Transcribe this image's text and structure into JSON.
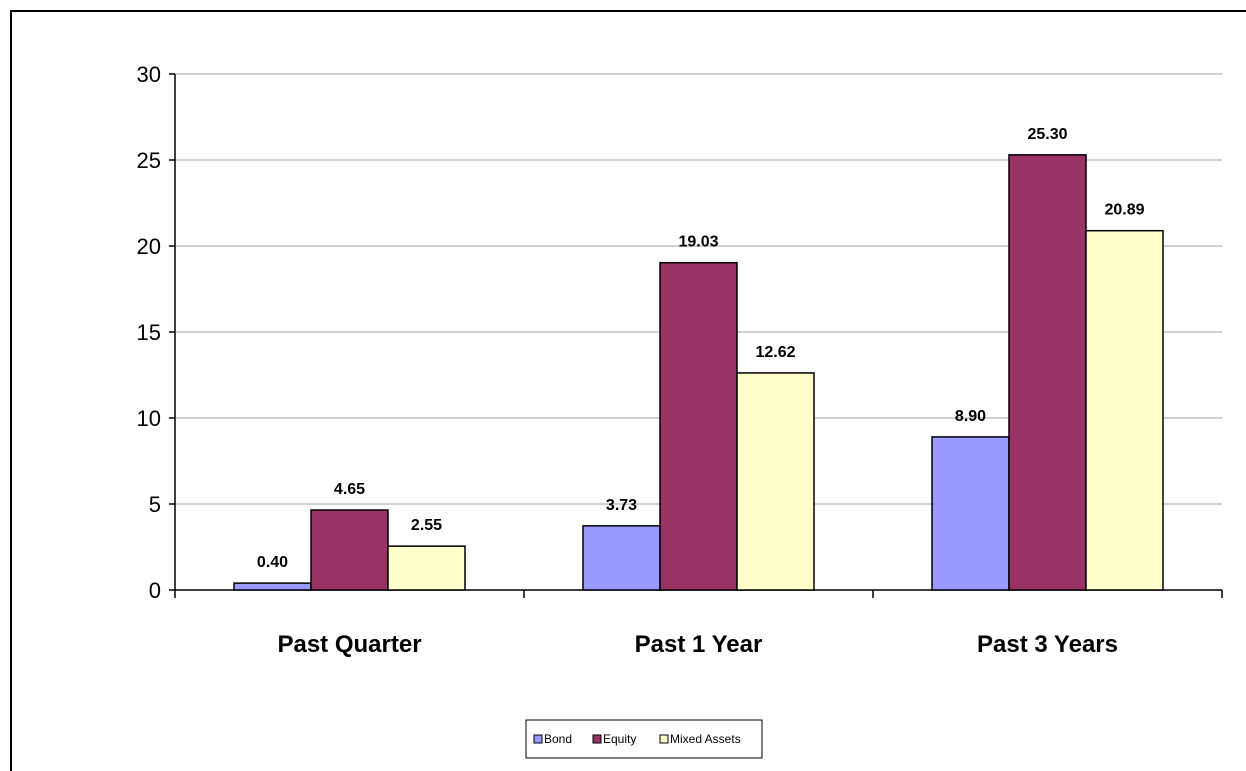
{
  "chart_data": {
    "type": "bar",
    "categories": [
      "Past Quarter",
      "Past 1 Year",
      "Past 3 Years"
    ],
    "series": [
      {
        "name": "Bond",
        "values": [
          0.4,
          3.73,
          8.9
        ],
        "color": "#9999FF",
        "labels": [
          "0.40",
          "3.73",
          "8.90"
        ]
      },
      {
        "name": "Equity",
        "values": [
          4.65,
          19.03,
          25.3
        ],
        "color": "#993366",
        "labels": [
          "4.65",
          "19.03",
          "25.30"
        ]
      },
      {
        "name": "Mixed Assets",
        "values": [
          2.55,
          12.62,
          20.89
        ],
        "color": "#FFFFCC",
        "labels": [
          "2.55",
          "12.62",
          "20.89"
        ]
      }
    ],
    "ylim": [
      0,
      30
    ],
    "yticks": [
      "0",
      "5",
      "10",
      "15",
      "20",
      "25",
      "30"
    ],
    "title": "",
    "xlabel": "",
    "ylabel": "",
    "grid": true,
    "legend_position": "bottom"
  }
}
